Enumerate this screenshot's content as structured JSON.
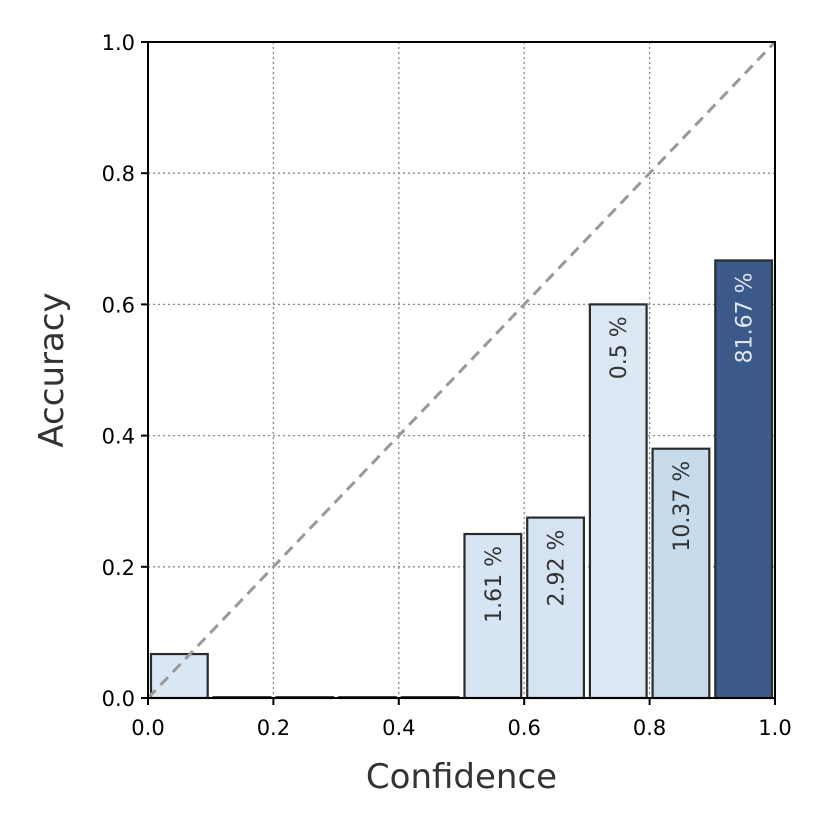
{
  "chart_data": {
    "type": "bar",
    "xlabel": "Confidence",
    "ylabel": "Accuracy",
    "xlim": [
      0.0,
      1.0
    ],
    "ylim": [
      0.0,
      1.0
    ],
    "xticks": [
      "0.0",
      "0.2",
      "0.4",
      "0.6",
      "0.8",
      "1.0"
    ],
    "yticks": [
      "0.0",
      "0.2",
      "0.4",
      "0.6",
      "0.8",
      "1.0"
    ],
    "grid": true,
    "reference_line": "diagonal y = x (dashed)",
    "bin_width": 0.1,
    "bars": [
      {
        "x": 0.05,
        "accuracy": 0.067,
        "label": "",
        "color": "#dae6f4",
        "label_color": "#333333"
      },
      {
        "x": 0.15,
        "accuracy": 0.0,
        "label": "",
        "color": "#dae6f4",
        "label_color": "#333333"
      },
      {
        "x": 0.25,
        "accuracy": 0.0,
        "label": "",
        "color": "#dae6f4",
        "label_color": "#333333"
      },
      {
        "x": 0.35,
        "accuracy": 0.0,
        "label": "",
        "color": "#dae6f4",
        "label_color": "#333333"
      },
      {
        "x": 0.45,
        "accuracy": 0.0,
        "label": "",
        "color": "#dae6f4",
        "label_color": "#333333"
      },
      {
        "x": 0.55,
        "accuracy": 0.25,
        "label": "1.61 %",
        "color": "#d7e4f3",
        "label_color": "#333333"
      },
      {
        "x": 0.65,
        "accuracy": 0.275,
        "label": "2.92 %",
        "color": "#d6e3f3",
        "label_color": "#333333"
      },
      {
        "x": 0.75,
        "accuracy": 0.6,
        "label": "0.5 %",
        "color": "#dce7f4",
        "label_color": "#333333"
      },
      {
        "x": 0.85,
        "accuracy": 0.38,
        "label": "10.37 %",
        "color": "#c6dbec",
        "label_color": "#333333"
      },
      {
        "x": 0.95,
        "accuracy": 0.667,
        "label": "81.67 %",
        "color": "#3b5a8a",
        "label_color": "#dfe6ef"
      }
    ],
    "colors": {
      "grid": "#888888",
      "diagonal": "#999999",
      "bar_edge": "#2b2b2b",
      "axes": "#000000"
    }
  }
}
